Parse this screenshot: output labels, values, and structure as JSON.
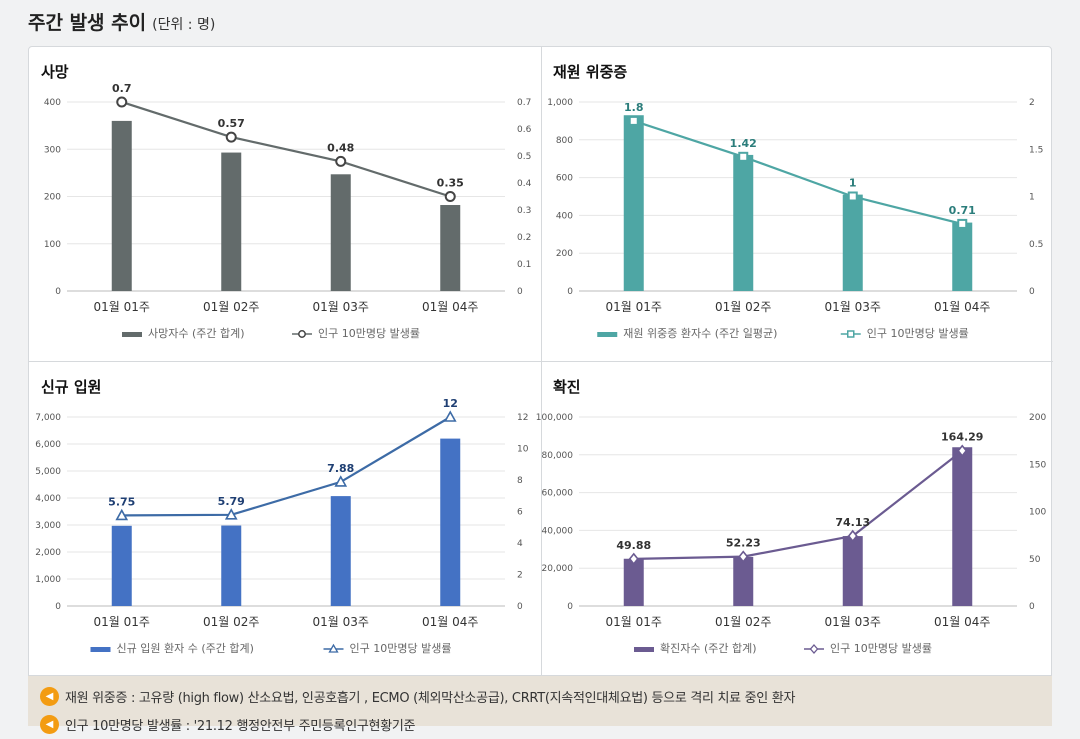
{
  "page": {
    "title": "주간 발생 추이",
    "unit": "(단위 : 명)"
  },
  "notes": [
    "재원 위중증 : 고유량 (high flow) 산소요법, 인공호흡기 , ECMO (체외막산소공급), CRRT(지속적인대체요법) 등으로 격리 치료 중인 환자",
    "인구 10만명당 발생률 : '21.12 행정안전부 주민등록인구현황기준"
  ],
  "colors": {
    "death": "#636b6b",
    "severe_bar": "#4ea6a4",
    "severe_line": "#4ea6a4",
    "admit_bar": "#4472c4",
    "admit_line": "#3d6ba6",
    "confirmed_bar": "#6b5b91",
    "confirmed_line": "#6b5b91"
  },
  "chart_data": [
    {
      "id": "death",
      "type": "bar",
      "title": "사망",
      "categories": [
        "01월 01주",
        "01월 02주",
        "01월 03주",
        "01월 04주"
      ],
      "series": [
        {
          "name": "사망자수 (주간 합계)",
          "kind": "bar",
          "axis": "left",
          "values": [
            360,
            293,
            247,
            182
          ]
        },
        {
          "name": "인구 10만명당 발생률",
          "kind": "line",
          "axis": "right",
          "values": [
            0.7,
            0.57,
            0.48,
            0.35
          ],
          "labels": [
            "0.7",
            "0.57",
            "0.48",
            "0.35"
          ]
        }
      ],
      "ylim": [
        0,
        400
      ],
      "yticks": [
        "0",
        "100",
        "200",
        "300",
        "400"
      ],
      "y2lim": [
        0,
        0.7
      ],
      "y2ticks": [
        "0",
        "0.1",
        "0.2",
        "0.3",
        "0.4",
        "0.5",
        "0.6",
        "0.7"
      ],
      "marker": "circle",
      "label_color": "#333333"
    },
    {
      "id": "severe",
      "type": "bar",
      "title": "재원 위중증",
      "categories": [
        "01월 01주",
        "01월 02주",
        "01월 03주",
        "01월 04주"
      ],
      "series": [
        {
          "name": "재원 위중증 환자수 (주간 일평균)",
          "kind": "bar",
          "axis": "left",
          "values": [
            930,
            720,
            510,
            362
          ]
        },
        {
          "name": "인구 10만명당 발생률",
          "kind": "line",
          "axis": "right",
          "values": [
            1.8,
            1.42,
            1.0,
            0.71
          ],
          "labels": [
            "1.8",
            "1.42",
            "1",
            "0.71"
          ]
        }
      ],
      "ylim": [
        0,
        1000
      ],
      "yticks": [
        "0",
        "200",
        "400",
        "600",
        "800",
        "1,000"
      ],
      "y2lim": [
        0,
        2
      ],
      "y2ticks": [
        "0",
        "0.5",
        "1",
        "1.5",
        "2"
      ],
      "marker": "square",
      "label_color": "#2b7d7b"
    },
    {
      "id": "admit",
      "type": "bar",
      "title": "신규 입원",
      "categories": [
        "01월 01주",
        "01월 02주",
        "01월 03주",
        "01월 04주"
      ],
      "series": [
        {
          "name": "신규 입원 환자 수 (주간 합계)",
          "kind": "bar",
          "axis": "left",
          "values": [
            2970,
            2980,
            4070,
            6200
          ]
        },
        {
          "name": "인구 10만명당 발생률",
          "kind": "line",
          "axis": "right",
          "values": [
            5.75,
            5.79,
            7.88,
            12
          ],
          "labels": [
            "5.75",
            "5.79",
            "7.88",
            "12"
          ]
        }
      ],
      "ylim": [
        0,
        7000
      ],
      "yticks": [
        "0",
        "1,000",
        "2,000",
        "3,000",
        "4,000",
        "5,000",
        "6,000",
        "7,000"
      ],
      "y2lim": [
        0,
        12
      ],
      "y2ticks": [
        "0",
        "2",
        "4",
        "6",
        "8",
        "10",
        "12"
      ],
      "marker": "triangle",
      "label_color": "#1f3f73"
    },
    {
      "id": "confirmed",
      "type": "bar",
      "title": "확진",
      "categories": [
        "01월 01주",
        "01월 02주",
        "01월 03주",
        "01월 04주"
      ],
      "series": [
        {
          "name": "확진자수 (주간 합계)",
          "kind": "bar",
          "axis": "left",
          "values": [
            25000,
            26000,
            37000,
            84000
          ]
        },
        {
          "name": "인구 10만명당 발생률",
          "kind": "line",
          "axis": "right",
          "values": [
            49.88,
            52.23,
            74.13,
            164.29
          ],
          "labels": [
            "49.88",
            "52.23",
            "74.13",
            "164.29"
          ]
        }
      ],
      "ylim": [
        0,
        100000
      ],
      "yticks": [
        "0",
        "20,000",
        "40,000",
        "60,000",
        "80,000",
        "100,000"
      ],
      "y2lim": [
        0,
        200
      ],
      "y2ticks": [
        "0",
        "50",
        "100",
        "150",
        "200"
      ],
      "marker": "diamond",
      "label_color": "#333333"
    }
  ]
}
